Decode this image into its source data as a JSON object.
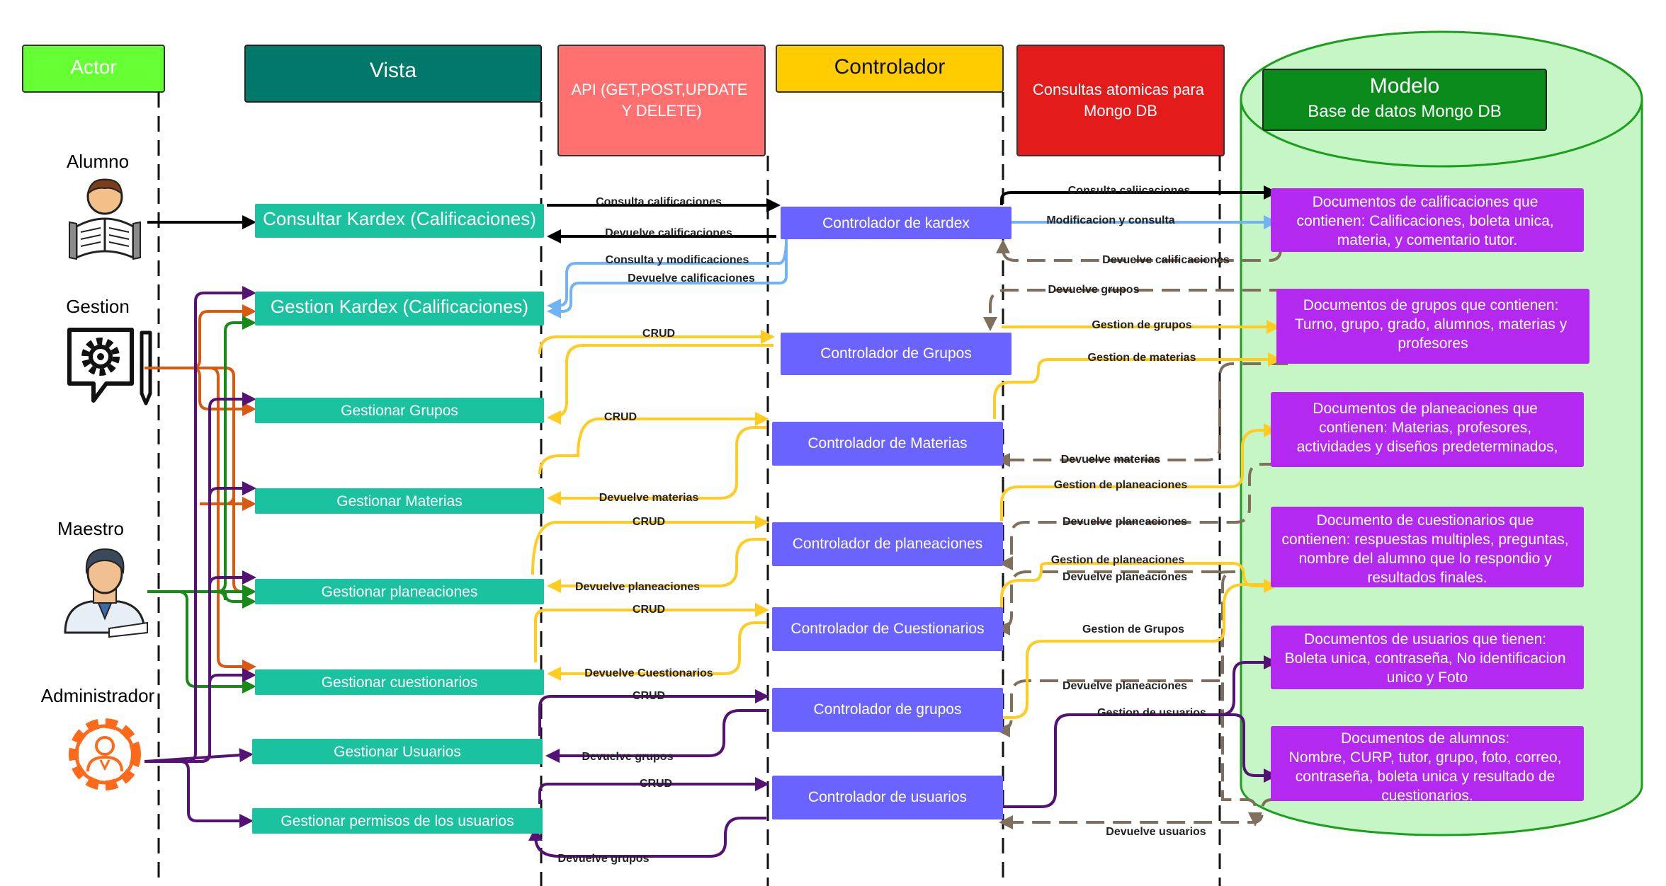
{
  "headers": {
    "actor": "Actor",
    "vista": "Vista",
    "api": "API (GET,POST,UPDATE Y DELETE)",
    "controlador": "Controlador",
    "consultas": "Consultas atomicas para Mongo DB",
    "modelo_title": "Modelo",
    "modelo_subtitle": "Base de datos Mongo DB"
  },
  "actors": [
    "Alumno",
    "Gestion",
    "Maestro",
    "Administrador"
  ],
  "views": [
    "Consultar Kardex (Calificaciones)",
    "Gestion Kardex (Calificaciones)",
    "Gestionar Grupos",
    "Gestionar Materias",
    "Gestionar planeaciones",
    "Gestionar cuestionarios",
    "Gestionar Usuarios",
    "Gestionar permisos de los usuarios"
  ],
  "controllers": [
    "Controlador de kardex",
    "Controlador de Grupos",
    "Controlador de Materias",
    "Controlador de planeaciones",
    "Controlador de Cuestionarios",
    "Controlador de grupos",
    "Controlador de usuarios"
  ],
  "documents": [
    "Documentos de calificaciones que contienen: Calificaciones, boleta unica, materia, y comentario tutor.",
    "Documentos de grupos que contienen: Turno, grupo, grado, alumnos, materias y profesores",
    "Documentos de planeaciones que contienen: Materias, profesores, actividades y diseños predeterminados,",
    "Documento de  cuestionarios que contienen: respuestas multiples, preguntas, nombre del alumno que lo respondio y resultados finales.",
    "Documentos de usuarios que tienen: Boleta unica, contraseña, No identificacion unico y Foto",
    "Documentos de alumnos: Nombre, CURP, tutor, grupo, foto, correo, contraseña, boleta unica y resultado de cuestionarios."
  ],
  "labels": {
    "consulta_calificaciones": "Consulta calificaciones",
    "devuelve_calificaciones": "Devuelve calificaciones",
    "consulta_modificaciones": "Consulta y modificaciones",
    "devuelve_calificaciones_2": "Devuelve calificaciones",
    "crud": "CRUD",
    "devuelve_materias": "Devuelve materias",
    "devuelve_planeaciones": "Devuelve planeaciones",
    "devuelve_cuestionarios": "Devuelve Cuestionarios",
    "devuelve_grupos": "Devuelve grupos",
    "consulta_caliicaciones": "Consulta caliicaciones",
    "modificacion_consulta": "Modificacion y consulta",
    "devuelve_calificaciones_db": "Devuelve calificaciones",
    "devuelve_grupos_db": "Devuelve grupos",
    "gestion_grupos": "Gestion de grupos",
    "gestion_materias": "Gestion de materias",
    "devuelve_materias_db": "Devuelve materias",
    "gestion_planeaciones": "Gestion de planeaciones",
    "devuelve_planeaciones_db": "Devuelve planeaciones",
    "gestion_planeaciones_2": "Gestion de planeaciones",
    "devuelve_planeaciones_db_2": "Devuelve planeaciones",
    "gestion_grupos_2": "Gestion de Grupos",
    "devuelve_planeaciones_db_3": "Devuelve planeaciones",
    "gestion_usuarios": "Gestion de usuarios",
    "devuelve_usuarios": "Devuelve usuarios"
  },
  "colors": {
    "actor_header": "#66ff33",
    "vista_header": "#00796b",
    "api_header": "#ff7070",
    "controlador_header": "#ffcc00",
    "consultas_header": "#e31b1b",
    "modelo_header": "#0a8a1a",
    "cylinder": "#c6f5c6",
    "view_box": "#1bc2a0",
    "controller_box": "#6b63ff",
    "doc_box": "#b429f0",
    "black": "#000000",
    "blue": "#72b4f2",
    "orange": "#d85a12",
    "purple": "#541275",
    "green": "#188a18",
    "yellow": "#ffcc22",
    "taupe": "#806f5c"
  }
}
